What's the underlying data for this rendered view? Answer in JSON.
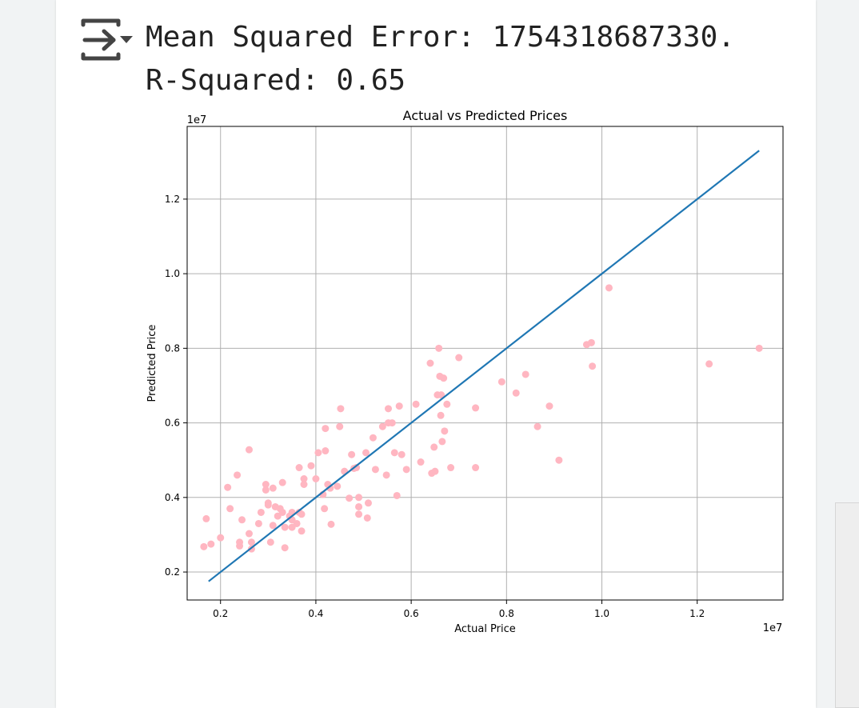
{
  "output": {
    "line1": "Mean Squared Error: 1754318687330.",
    "line2": "R-Squared: 0.65"
  },
  "icons": {
    "output_toggle": "output-collapse-icon"
  },
  "chart_data": {
    "type": "scatter",
    "title": "Actual vs Predicted Prices",
    "xlabel": "Actual Price",
    "ylabel": "Predicted Price",
    "x_offset_label": "1e7",
    "y_offset_label": "1e7",
    "xlim": [
      0.13,
      1.38
    ],
    "ylim": [
      0.125,
      1.395
    ],
    "xticks": [
      0.2,
      0.4,
      0.6,
      0.8,
      1.0,
      1.2
    ],
    "yticks": [
      0.2,
      0.4,
      0.6,
      0.8,
      1.0,
      1.2
    ],
    "xtick_labels": [
      "0.2",
      "0.4",
      "0.6",
      "0.8",
      "1.0",
      "1.2"
    ],
    "ytick_labels": [
      "0.2",
      "0.4",
      "0.6",
      "0.8",
      "1.0",
      "1.2"
    ],
    "grid": true,
    "scatter_color": "#ffb6c1",
    "line_color": "#1f77b4",
    "reference_line": {
      "x": [
        0.175,
        1.33
      ],
      "y": [
        0.175,
        1.33
      ]
    },
    "points": [
      [
        0.165,
        0.268
      ],
      [
        0.18,
        0.275
      ],
      [
        0.17,
        0.343
      ],
      [
        0.2,
        0.292
      ],
      [
        0.215,
        0.427
      ],
      [
        0.22,
        0.37
      ],
      [
        0.235,
        0.46
      ],
      [
        0.24,
        0.28
      ],
      [
        0.24,
        0.27
      ],
      [
        0.245,
        0.34
      ],
      [
        0.26,
        0.528
      ],
      [
        0.26,
        0.303
      ],
      [
        0.265,
        0.28
      ],
      [
        0.265,
        0.262
      ],
      [
        0.28,
        0.33
      ],
      [
        0.285,
        0.36
      ],
      [
        0.295,
        0.435
      ],
      [
        0.295,
        0.42
      ],
      [
        0.3,
        0.38
      ],
      [
        0.3,
        0.385
      ],
      [
        0.305,
        0.28
      ],
      [
        0.31,
        0.325
      ],
      [
        0.31,
        0.425
      ],
      [
        0.315,
        0.375
      ],
      [
        0.32,
        0.35
      ],
      [
        0.325,
        0.37
      ],
      [
        0.33,
        0.44
      ],
      [
        0.33,
        0.36
      ],
      [
        0.335,
        0.265
      ],
      [
        0.335,
        0.32
      ],
      [
        0.345,
        0.35
      ],
      [
        0.35,
        0.34
      ],
      [
        0.35,
        0.32
      ],
      [
        0.35,
        0.36
      ],
      [
        0.36,
        0.33
      ],
      [
        0.365,
        0.48
      ],
      [
        0.365,
        0.36
      ],
      [
        0.37,
        0.355
      ],
      [
        0.37,
        0.31
      ],
      [
        0.375,
        0.45
      ],
      [
        0.375,
        0.435
      ],
      [
        0.39,
        0.485
      ],
      [
        0.4,
        0.45
      ],
      [
        0.405,
        0.52
      ],
      [
        0.415,
        0.408
      ],
      [
        0.418,
        0.37
      ],
      [
        0.42,
        0.585
      ],
      [
        0.42,
        0.525
      ],
      [
        0.425,
        0.435
      ],
      [
        0.43,
        0.425
      ],
      [
        0.432,
        0.328
      ],
      [
        0.445,
        0.43
      ],
      [
        0.45,
        0.59
      ],
      [
        0.452,
        0.638
      ],
      [
        0.46,
        0.47
      ],
      [
        0.47,
        0.398
      ],
      [
        0.475,
        0.515
      ],
      [
        0.48,
        0.478
      ],
      [
        0.485,
        0.48
      ],
      [
        0.49,
        0.4
      ],
      [
        0.49,
        0.375
      ],
      [
        0.49,
        0.355
      ],
      [
        0.505,
        0.52
      ],
      [
        0.508,
        0.345
      ],
      [
        0.51,
        0.385
      ],
      [
        0.52,
        0.56
      ],
      [
        0.525,
        0.475
      ],
      [
        0.54,
        0.59
      ],
      [
        0.548,
        0.46
      ],
      [
        0.552,
        0.6
      ],
      [
        0.552,
        0.638
      ],
      [
        0.56,
        0.6
      ],
      [
        0.565,
        0.52
      ],
      [
        0.57,
        0.405
      ],
      [
        0.575,
        0.645
      ],
      [
        0.58,
        0.515
      ],
      [
        0.59,
        0.475
      ],
      [
        0.61,
        0.65
      ],
      [
        0.62,
        0.495
      ],
      [
        0.64,
        0.76
      ],
      [
        0.643,
        0.465
      ],
      [
        0.648,
        0.535
      ],
      [
        0.65,
        0.47
      ],
      [
        0.655,
        0.675
      ],
      [
        0.658,
        0.8
      ],
      [
        0.66,
        0.725
      ],
      [
        0.662,
        0.62
      ],
      [
        0.663,
        0.675
      ],
      [
        0.665,
        0.55
      ],
      [
        0.668,
        0.72
      ],
      [
        0.67,
        0.578
      ],
      [
        0.675,
        0.65
      ],
      [
        0.683,
        0.48
      ],
      [
        0.7,
        0.775
      ],
      [
        0.735,
        0.64
      ],
      [
        0.735,
        0.48
      ],
      [
        0.79,
        0.71
      ],
      [
        0.82,
        0.68
      ],
      [
        0.84,
        0.73
      ],
      [
        0.865,
        0.59
      ],
      [
        0.89,
        0.645
      ],
      [
        0.91,
        0.5
      ],
      [
        0.968,
        0.81
      ],
      [
        0.978,
        0.815
      ],
      [
        0.98,
        0.752
      ],
      [
        1.015,
        0.962
      ],
      [
        1.225,
        0.758
      ],
      [
        1.33,
        0.8
      ]
    ]
  }
}
